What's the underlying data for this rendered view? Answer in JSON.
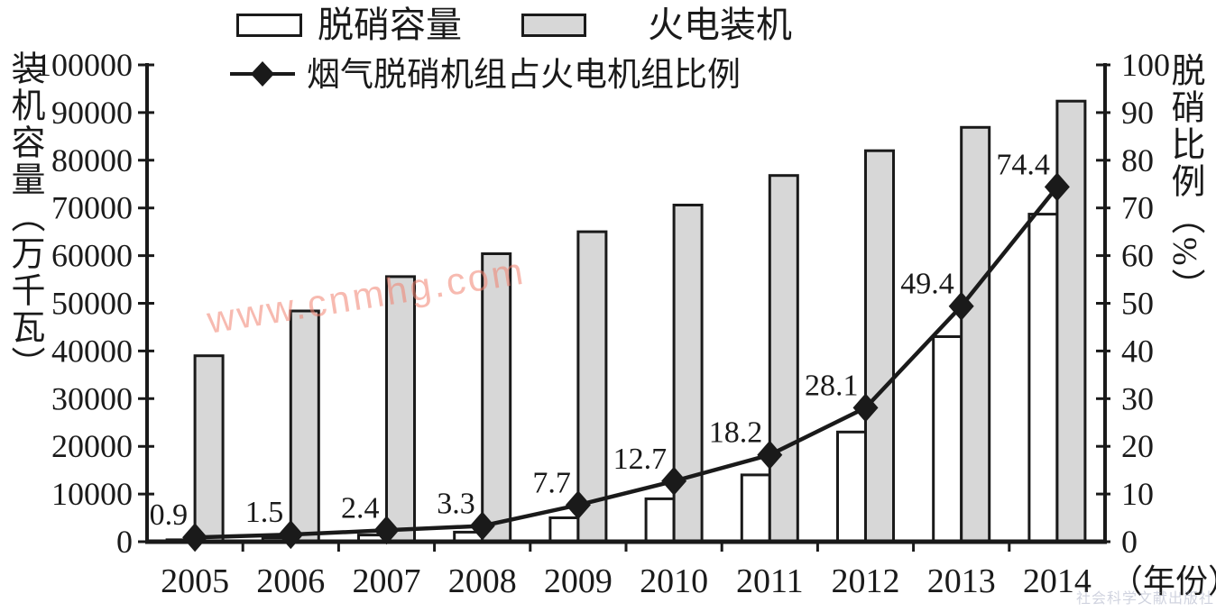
{
  "legend": {
    "bar_items": [
      {
        "label": "脱硝容量",
        "fill": "#ffffff"
      },
      {
        "label": "火电装机",
        "fill": "#d7d7d7"
      }
    ],
    "line_item": {
      "label": "烟气脱硝机组占火电机组比例"
    }
  },
  "axes": {
    "left_title": "装机容量（万千瓦）",
    "right_title": "脱硝比例（%）",
    "x_suffix": "（年份）"
  },
  "watermarks": {
    "center": "www.cnmhg.com",
    "bottom_right": "社会科学文献出版社"
  },
  "colors": {
    "ink": "#1a1a1a",
    "bar_gray": "#d7d7d7",
    "bar_white": "#ffffff",
    "watermark_center": "#f08270",
    "watermark_corner": "#969eb9"
  },
  "chart_data": {
    "type": "bar+line",
    "categories": [
      "2005",
      "2006",
      "2007",
      "2008",
      "2009",
      "2010",
      "2011",
      "2012",
      "2013",
      "2014"
    ],
    "series": [
      {
        "name": "脱硝容量",
        "type": "bar",
        "axis": "left",
        "fill": "#ffffff",
        "values": [
          400,
          800,
          1400,
          2000,
          5000,
          9000,
          14000,
          23000,
          43000,
          68700
        ]
      },
      {
        "name": "火电装机",
        "type": "bar",
        "axis": "left",
        "fill": "#d7d7d7",
        "values": [
          39000,
          48400,
          55600,
          60400,
          65000,
          70600,
          76800,
          82000,
          86900,
          92400
        ]
      },
      {
        "name": "烟气脱硝机组占火电机组比例",
        "type": "line",
        "axis": "right",
        "marker": "diamond",
        "color": "#1a1a1a",
        "values": [
          0.9,
          1.5,
          2.4,
          3.3,
          7.7,
          12.7,
          18.2,
          28.1,
          49.4,
          74.4
        ],
        "data_labels": [
          "0.9",
          "1.5",
          "2.4",
          "3.3",
          "7.7",
          "12.7",
          "18.2",
          "28.1",
          "49.4",
          "74.4"
        ]
      }
    ],
    "left_axis": {
      "title": "装机容量（万千瓦）",
      "min": 0,
      "max": 100000,
      "step": 10000
    },
    "right_axis": {
      "title": "脱硝比例（%）",
      "min": 0,
      "max": 100,
      "step": 10
    },
    "x_axis_title": "（年份）",
    "grid": false,
    "legend_position": "top"
  }
}
